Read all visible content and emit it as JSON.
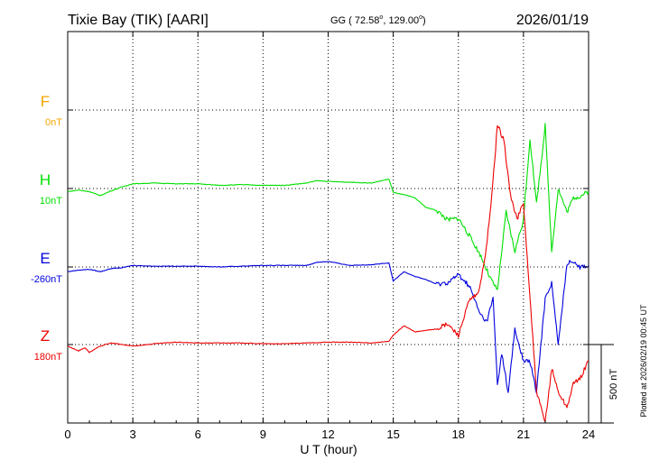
{
  "header": {
    "station": "Tixie Bay (TIK)  [AARI]",
    "coords_prefix": "GG ( 72.58",
    "coords_mid": ", 129.00",
    "coords_suffix": ")",
    "degree_mark": "o",
    "date": "2026/01/19"
  },
  "footer": {
    "plotted": "Plotted at 2026/02/19 00:45 UT",
    "scale_label": "500 nT"
  },
  "chart_data": {
    "type": "line",
    "xlabel": "U T (hour)",
    "xlim": [
      0,
      24
    ],
    "x_ticks": [
      0,
      3,
      6,
      9,
      12,
      15,
      18,
      21,
      24
    ],
    "x_tick_labels": [
      "0",
      "3",
      "6",
      "9",
      "12",
      "15",
      "18",
      "21",
      "24"
    ],
    "grid": true,
    "scale_bar_nT": 500,
    "series": [
      {
        "name": "F",
        "baseline_label": "0nT",
        "color": "#f5a500",
        "offset_rank": 0,
        "x": [],
        "y": []
      },
      {
        "name": "H",
        "baseline_label": "10nT",
        "color": "#00e000",
        "offset_rank": 1,
        "x": [
          0,
          0.5,
          1,
          1.5,
          2,
          2.5,
          3,
          4,
          5,
          6,
          7,
          8,
          9,
          10,
          11,
          11.5,
          12,
          13,
          14,
          14.8,
          15,
          15.5,
          16,
          16.5,
          17,
          17.5,
          18,
          18.5,
          19,
          19.5,
          19.8,
          20.2,
          20.6,
          21,
          21.3,
          21.6,
          22,
          22.3,
          22.6,
          23,
          23.3,
          23.6,
          24
        ],
        "y": [
          -20,
          -10,
          -20,
          -45,
          -15,
          10,
          30,
          35,
          30,
          30,
          20,
          25,
          20,
          20,
          35,
          50,
          45,
          40,
          35,
          60,
          -25,
          -40,
          -60,
          -120,
          -140,
          -200,
          -190,
          -300,
          -420,
          -580,
          -650,
          -150,
          -400,
          -200,
          320,
          -100,
          400,
          -400,
          0,
          -150,
          -60,
          -50,
          -20
        ]
      },
      {
        "name": "E",
        "baseline_label": "-260nT",
        "color": "#0000dd",
        "offset_rank": 2,
        "x": [
          0,
          0.5,
          1,
          1.5,
          2,
          2.5,
          3,
          4,
          5,
          6,
          7,
          8,
          9,
          10,
          11,
          11.5,
          12,
          13,
          14,
          14.8,
          15,
          15.5,
          16,
          16.5,
          17,
          17.5,
          18,
          18.5,
          19,
          19.3,
          19.6,
          19.8,
          20,
          20.3,
          20.6,
          21,
          21.3,
          21.6,
          22,
          22.3,
          22.6,
          23,
          23.3,
          23.6,
          24
        ],
        "y": [
          -30,
          -20,
          -15,
          -30,
          -10,
          -5,
          10,
          5,
          5,
          5,
          0,
          5,
          10,
          10,
          10,
          30,
          35,
          10,
          15,
          25,
          -90,
          -30,
          -60,
          -80,
          -110,
          -100,
          -50,
          -120,
          -300,
          -350,
          -200,
          -750,
          -550,
          -800,
          -400,
          -600,
          -600,
          -800,
          -200,
          -100,
          -500,
          20,
          40,
          0,
          10
        ]
      },
      {
        "name": "Z",
        "baseline_label": "180nT",
        "color": "#ee0000",
        "offset_rank": 3,
        "x": [
          0,
          0.5,
          0.8,
          1,
          1.5,
          2,
          2.5,
          3,
          4,
          5,
          6,
          7,
          8,
          9,
          10,
          11,
          12,
          13,
          14,
          14.8,
          15,
          15.5,
          16,
          16.5,
          17,
          17.5,
          18,
          18.5,
          18.9,
          19.2,
          19.5,
          19.8,
          20.1,
          20.4,
          20.7,
          21,
          21.3,
          21.6,
          22,
          22.3,
          22.6,
          23,
          23.3,
          23.6,
          24
        ],
        "y": [
          -10,
          -40,
          -20,
          -50,
          -10,
          10,
          0,
          -10,
          5,
          15,
          10,
          10,
          10,
          5,
          5,
          10,
          15,
          15,
          10,
          20,
          60,
          120,
          80,
          90,
          100,
          130,
          60,
          280,
          320,
          520,
          880,
          1400,
          1300,
          950,
          800,
          900,
          300,
          -300,
          -500,
          -150,
          -300,
          -400,
          -250,
          -220,
          -100
        ]
      }
    ]
  }
}
